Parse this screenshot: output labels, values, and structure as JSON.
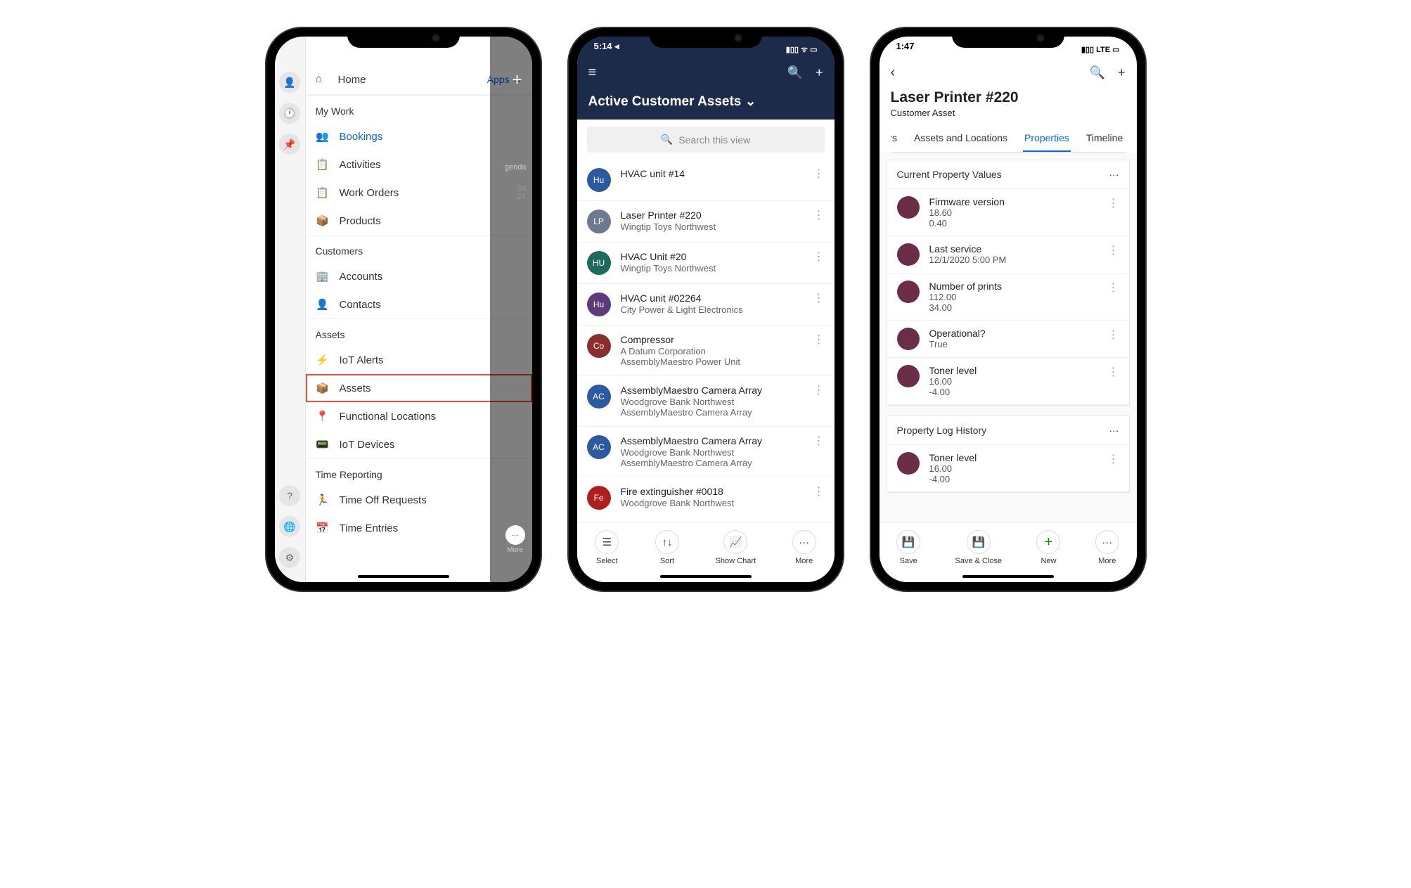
{
  "phone1": {
    "home_label": "Home",
    "apps_label": "Apps →",
    "behind": {
      "tab": "genda",
      "day": "Sa",
      "date": "24",
      "more": "More"
    },
    "sections": [
      {
        "title": "My Work",
        "items": [
          {
            "icon": "👥",
            "label": "Bookings",
            "active": true
          },
          {
            "icon": "📋",
            "label": "Activities"
          },
          {
            "icon": "📋",
            "label": "Work Orders"
          },
          {
            "icon": "📦",
            "label": "Products"
          }
        ]
      },
      {
        "title": "Customers",
        "items": [
          {
            "icon": "🏢",
            "label": "Accounts"
          },
          {
            "icon": "👤",
            "label": "Contacts"
          }
        ]
      },
      {
        "title": "Assets",
        "items": [
          {
            "icon": "⚡",
            "label": "IoT Alerts"
          },
          {
            "icon": "📦",
            "label": "Assets",
            "highlighted": true
          },
          {
            "icon": "📍",
            "label": "Functional Locations"
          },
          {
            "icon": "📟",
            "label": "IoT Devices"
          }
        ]
      },
      {
        "title": "Time Reporting",
        "items": [
          {
            "icon": "🏃",
            "label": "Time Off Requests"
          },
          {
            "icon": "📅",
            "label": "Time Entries"
          }
        ]
      }
    ]
  },
  "phone2": {
    "time": "5:14 ◂",
    "status_right": "▮▯▯ ᯤ ▭",
    "title": "Active Customer Assets ⌄",
    "search_placeholder": "Search this view",
    "rows": [
      {
        "initials": "Hu",
        "color": "#2c5aa0",
        "t1": "HVAC unit #14"
      },
      {
        "initials": "LP",
        "color": "#6b7a8f",
        "t1": "Laser Printer #220",
        "t2": "Wingtip Toys Northwest"
      },
      {
        "initials": "HU",
        "color": "#1e6b5c",
        "t1": "HVAC Unit #20",
        "t2": "Wingtip Toys Northwest"
      },
      {
        "initials": "Hu",
        "color": "#5d3a7a",
        "t1": "HVAC unit #02264",
        "t2": "City Power & Light Electronics"
      },
      {
        "initials": "Co",
        "color": "#8b2e2e",
        "t1": "Compressor",
        "t2": "A Datum Corporation",
        "t3": "AssemblyMaestro Power Unit"
      },
      {
        "initials": "AC",
        "color": "#2c5aa0",
        "t1": "AssemblyMaestro Camera Array",
        "t2": "Woodgrove Bank Northwest",
        "t3": "AssemblyMaestro Camera Array"
      },
      {
        "initials": "AC",
        "color": "#2c5aa0",
        "t1": "AssemblyMaestro Camera Array",
        "t2": "Woodgrove Bank Northwest",
        "t3": "AssemblyMaestro Camera Array"
      },
      {
        "initials": "Fe",
        "color": "#b01e1e",
        "t1": "Fire extinguisher #0018",
        "t2": "Woodgrove Bank Northwest"
      }
    ],
    "bottom": [
      {
        "icon": "☰",
        "label": "Select"
      },
      {
        "icon": "↑↓",
        "label": "Sort"
      },
      {
        "icon": "📈",
        "label": "Show Chart"
      },
      {
        "icon": "···",
        "label": "More"
      }
    ]
  },
  "phone3": {
    "time": "1:47",
    "status_right": "▮▯▯ LTE ▭",
    "title": "Laser Printer #220",
    "subtitle": "Customer Asset",
    "tabs": [
      {
        "label": "ers",
        "cut": true
      },
      {
        "label": "Assets and Locations"
      },
      {
        "label": "Properties",
        "active": true
      },
      {
        "label": "Timeline"
      }
    ],
    "cards": [
      {
        "header": "Current Property Values",
        "props": [
          {
            "l1": "Firmware version",
            "l2": "18.60",
            "l3": "0.40"
          },
          {
            "l1": "Last service",
            "l2": "12/1/2020 5:00 PM"
          },
          {
            "l1": "Number of prints",
            "l2": "112.00",
            "l3": "34.00"
          },
          {
            "l1": "Operational?",
            "l2": "True"
          },
          {
            "l1": "Toner level",
            "l2": "16.00",
            "l3": "-4.00"
          }
        ]
      },
      {
        "header": "Property Log History",
        "props": [
          {
            "l1": "Toner level",
            "l2": "16.00",
            "l3": "-4.00"
          }
        ]
      }
    ],
    "bottom": [
      {
        "icon": "💾",
        "label": "Save"
      },
      {
        "icon": "💾",
        "label": "Save & Close"
      },
      {
        "icon": "+",
        "label": "New",
        "green": true
      },
      {
        "icon": "···",
        "label": "More"
      }
    ]
  }
}
